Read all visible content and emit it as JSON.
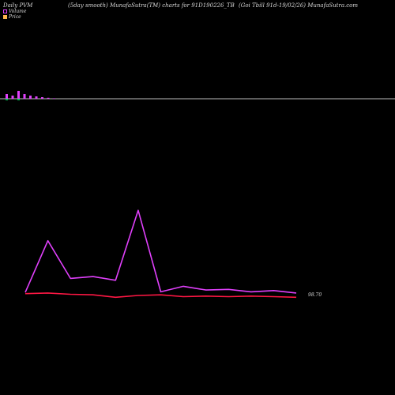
{
  "header": {
    "left": "Daily PVM",
    "middle": "(5day smooth) MunafaSutra(TM) charts for 91D190226_TB",
    "right": "(Goi  Tbill 91d-19/02/26) MunafaSutra.com"
  },
  "legend": {
    "volume_label": "Volume",
    "price_label": "Price"
  },
  "colors": {
    "background": "#000000",
    "volume_bar": "#e040fb",
    "volume_bar_down": "#00c853",
    "price_line": "#ff1744",
    "pvm_line": "#e040fb",
    "baseline": "#bdbdbd"
  },
  "chart_data": {
    "type": "line",
    "end_label": "98.70",
    "volume_bars": [
      {
        "value": 3,
        "color": "volume_bar"
      },
      {
        "value": 2,
        "color": "volume_bar"
      },
      {
        "value": 5,
        "color": "volume_bar"
      },
      {
        "value": 3,
        "color": "volume_bar"
      },
      {
        "value": 2,
        "color": "volume_bar"
      },
      {
        "value": 1.5,
        "color": "volume_bar"
      },
      {
        "value": 1,
        "color": "volume_bar"
      },
      {
        "value": 0.6,
        "color": "volume_bar"
      },
      {
        "value": 0.3,
        "color": "volume_bar"
      }
    ],
    "volume_down_marks": [
      0,
      2
    ],
    "series": [
      {
        "key": "pvm",
        "values": [
          0.5,
          9,
          2.8,
          3.1,
          2.5,
          14,
          0.6,
          1.5,
          0.9,
          1.0,
          0.6,
          0.8,
          0.4
        ]
      },
      {
        "key": "price",
        "values": [
          0.3,
          0.4,
          0.2,
          0.1,
          -0.3,
          0.0,
          0.1,
          -0.2,
          -0.1,
          -0.2,
          -0.1,
          -0.2,
          -0.3
        ]
      }
    ],
    "ylim": [
      -2,
      16
    ]
  }
}
